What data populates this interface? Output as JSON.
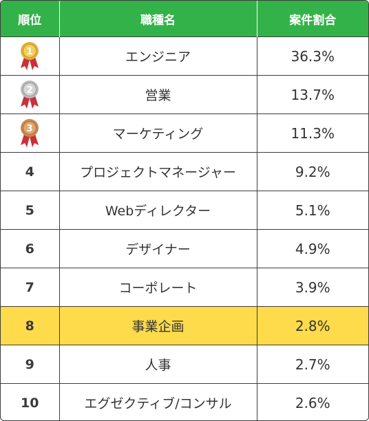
{
  "header": {
    "rank": "順位",
    "job": "職種名",
    "share": "案件割合"
  },
  "medal_colors": {
    "gold": "#e2b13c",
    "silver": "#b9b9b9",
    "bronze": "#c98a4f",
    "ribbon": "#c9313a"
  },
  "rows": [
    {
      "rank": "1",
      "medal": "gold",
      "job": "エンジニア",
      "share": "36.3%"
    },
    {
      "rank": "2",
      "medal": "silver",
      "job": "営業",
      "share": "13.7%"
    },
    {
      "rank": "3",
      "medal": "bronze",
      "job": "マーケティング",
      "share": "11.3%"
    },
    {
      "rank": "4",
      "job": "プロジェクトマネージャー",
      "share": "9.2%"
    },
    {
      "rank": "5",
      "job": "Webディレクター",
      "share": "5.1%"
    },
    {
      "rank": "6",
      "job": "デザイナー",
      "share": "4.9%"
    },
    {
      "rank": "7",
      "job": "コーポレート",
      "share": "3.9%"
    },
    {
      "rank": "8",
      "job": "事業企画",
      "share": "2.8%",
      "highlight": true
    },
    {
      "rank": "9",
      "job": "人事",
      "share": "2.7%"
    },
    {
      "rank": "10",
      "job": "エグゼクティブ/コンサル",
      "share": "2.6%"
    }
  ]
}
